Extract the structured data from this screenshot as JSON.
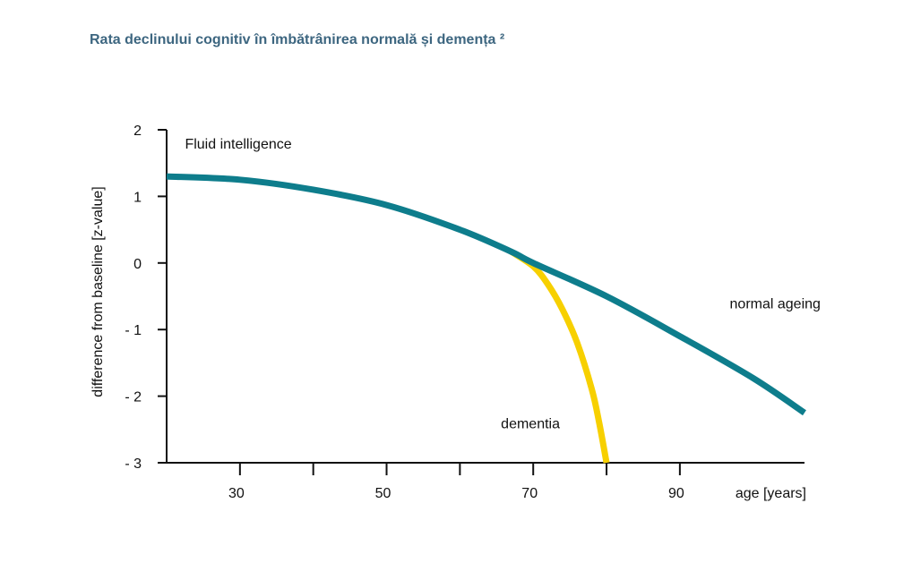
{
  "title": "Rata declinului cognitiv în îmbătrânirea normală și demența ²",
  "chart_data": {
    "type": "line",
    "xlabel": "age [years]",
    "ylabel": "difference from baseline [z-value]",
    "xlim": [
      20,
      107
    ],
    "ylim": [
      -3,
      2
    ],
    "x_ticks": [
      30,
      40,
      50,
      60,
      70,
      80,
      90
    ],
    "x_tick_labels": [
      {
        "value": 30,
        "label": "30"
      },
      {
        "value": 50,
        "label": "50"
      },
      {
        "value": 70,
        "label": "70"
      },
      {
        "value": 90,
        "label": "90"
      }
    ],
    "y_ticks": [
      {
        "value": 2,
        "label": "2"
      },
      {
        "value": 1,
        "label": "1"
      },
      {
        "value": 0,
        "label": "0"
      },
      {
        "value": -1,
        "label": "- 1"
      },
      {
        "value": -2,
        "label": "- 2"
      },
      {
        "value": -3,
        "label": "- 3"
      }
    ],
    "annotations": [
      {
        "text": "Fluid intelligence",
        "x": 22.5,
        "y": 1.8
      },
      {
        "text": "normal ageing",
        "x": 96.8,
        "y": -0.6
      },
      {
        "text": "dementia",
        "x": 65.6,
        "y": -2.4
      }
    ],
    "series": [
      {
        "name": "normal ageing",
        "color": "#0e7d8c",
        "x": [
          20,
          30,
          40,
          50,
          60,
          67,
          70,
          80,
          90,
          100,
          107
        ],
        "y": [
          1.3,
          1.25,
          1.1,
          0.87,
          0.5,
          0.17,
          0.0,
          -0.5,
          -1.1,
          -1.73,
          -2.25
        ]
      },
      {
        "name": "dementia",
        "color": "#f7d000",
        "x": [
          67,
          70,
          72,
          74,
          76,
          78,
          79,
          80
        ],
        "y": [
          0.17,
          -0.05,
          -0.32,
          -0.7,
          -1.2,
          -1.9,
          -2.4,
          -3.0
        ]
      }
    ]
  }
}
